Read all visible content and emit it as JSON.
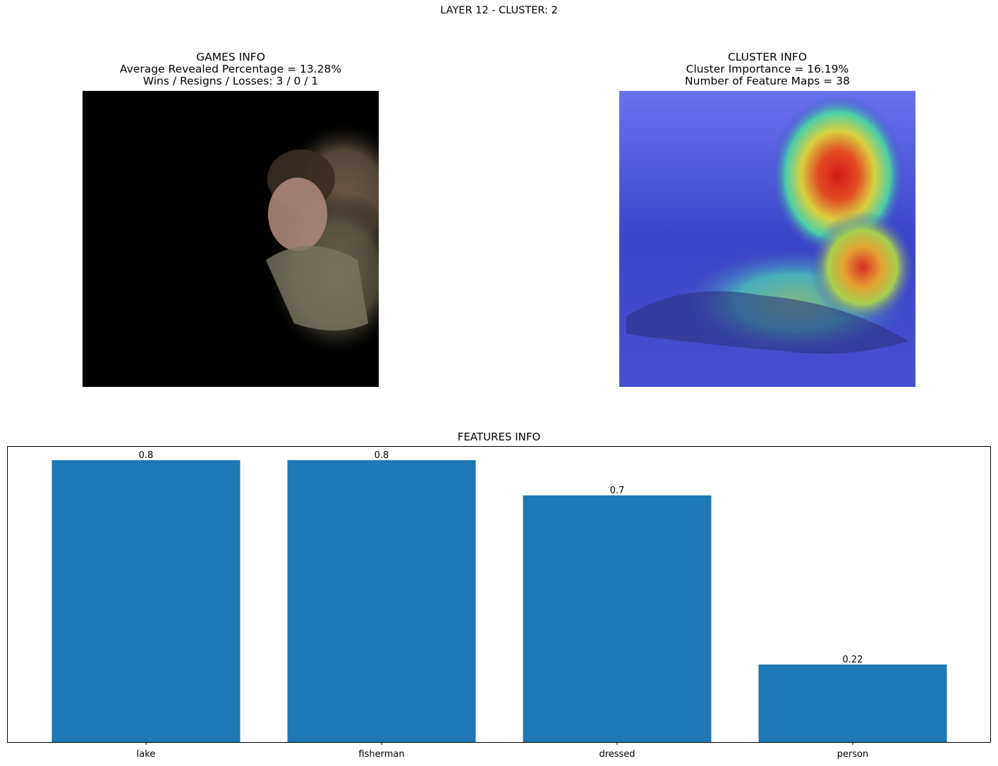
{
  "suptitle": "LAYER 12 - CLUSTER: 2",
  "games_info": {
    "title": "GAMES INFO",
    "revealed": "Average Revealed Percentage = 13.28%",
    "record": "Wins / Resigns / Losses: 3 / 0 / 1"
  },
  "cluster_info": {
    "title": "CLUSTER INFO",
    "importance": "Cluster Importance = 16.19%",
    "feature_maps": "Number of Feature Maps = 38"
  },
  "features_title": "FEATURES INFO",
  "chart_data": {
    "type": "bar",
    "title": "FEATURES INFO",
    "categories": [
      "lake",
      "fisherman",
      "dressed",
      "person"
    ],
    "values": [
      0.8,
      0.8,
      0.7,
      0.22
    ],
    "value_labels": [
      "0.8",
      "0.8",
      "0.7",
      "0.22"
    ],
    "ylim": [
      0,
      0.84
    ],
    "bar_color": "#1f77b4",
    "grid": false,
    "yticks_visible": false
  },
  "colors": {
    "bar": "#1f77b4",
    "heatmap_low": "#3f45c4",
    "heatmap_high": "#d61e1e"
  }
}
